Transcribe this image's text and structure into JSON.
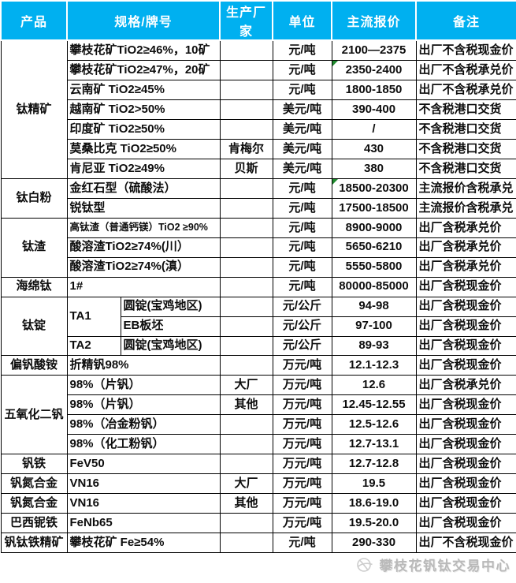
{
  "header": {
    "columns": [
      "产品",
      "规格/牌号",
      "生产厂家",
      "单位",
      "主流报价",
      "备注"
    ]
  },
  "colors": {
    "header_bg": "#00b0f0",
    "header_text": "#ffffff",
    "border": "#000000",
    "flag_green": "#1f8a2e",
    "watermark_gray": "#b9b9b9"
  },
  "rows": [
    {
      "product": "钛精矿",
      "product_span": 7,
      "spec": "攀枝花矿TiO2≥46%，10矿",
      "maker": "",
      "unit": "元/吨",
      "price": "2100—2375",
      "note": "出厂不含税现金价",
      "flag": false
    },
    {
      "spec": "攀枝花矿TiO2≥47%，20矿",
      "maker": "",
      "unit": "元/吨",
      "price": "2350-2400",
      "note": "出厂不含税承兑价",
      "flag": true
    },
    {
      "spec": "云南矿 TiO2≥45%",
      "maker": "",
      "unit": "元/吨",
      "price": "1800-1850",
      "note": "出厂不含税承兑价",
      "flag": false
    },
    {
      "spec": "越南矿 TiO2>50%",
      "maker": "",
      "unit": "美元/吨",
      "price": "390-400",
      "note": "不含税港口交货",
      "flag": false
    },
    {
      "spec": "印度矿 TiO2≥50%",
      "maker": "",
      "unit": "美元/吨",
      "price": "/",
      "note": "不含税港口交货",
      "flag": false
    },
    {
      "spec": "莫桑比克 TiO2≥50%",
      "maker": "肯梅尔",
      "unit": "美元/吨",
      "price": "430",
      "note": "不含税港口交货",
      "flag": false
    },
    {
      "spec": "肯尼亚 TiO2≥49%",
      "maker": "贝斯",
      "unit": "美元/吨",
      "price": "380",
      "note": "不含税港口交货",
      "flag": false
    },
    {
      "product": "钛白粉",
      "product_span": 2,
      "spec": "金红石型（硫酸法）",
      "maker": "",
      "unit": "元/吨",
      "price": "18500-20300",
      "note": "主流报价含税承兑",
      "flag": true
    },
    {
      "spec": "锐钛型",
      "maker": "",
      "unit": "元/吨",
      "price": "17500-18500",
      "note": "主流报价含税承兑",
      "flag": false
    },
    {
      "product": "钛渣",
      "product_span": 3,
      "spec": "高钛渣（普通钙镁）TiO2 ≥90%",
      "spec_small": true,
      "maker": "",
      "unit": "元/吨",
      "price": "8900-9000",
      "note": "出厂含税承兑价",
      "flag": false
    },
    {
      "spec": "酸溶渣TiO2≥74%(川）",
      "maker": "",
      "unit": "元/吨",
      "price": "5650-6210",
      "note": "出厂含税承兑价",
      "flag": false
    },
    {
      "spec": "酸溶渣TiO2≥74%(滇）",
      "maker": "",
      "unit": "元/吨",
      "price": "5550-5800",
      "note": "出厂含税承兑价",
      "flag": false
    },
    {
      "product": "海绵钛",
      "product_span": 1,
      "spec": "1#",
      "maker": "",
      "unit": "元/吨",
      "price": "80000-85000",
      "note": "出厂含税现金价",
      "flag": false
    },
    {
      "product": "钛锭",
      "product_span": 3,
      "grade": "TA1",
      "grade_span": 2,
      "shape": "圆锭(宝鸡地区)",
      "maker": "",
      "unit": "元/公斤",
      "price": "94-98",
      "note": "出厂含税现金价",
      "flag": false
    },
    {
      "shape": "EB板坯",
      "maker": "",
      "unit": "元/公斤",
      "price": "97-100",
      "note": "出厂含税现金价",
      "flag": false
    },
    {
      "grade": "TA2",
      "grade_span": 1,
      "shape": "圆锭(宝鸡地区)",
      "maker": "",
      "unit": "元/公斤",
      "price": "89-93",
      "note": "出厂含税现金价",
      "flag": false
    },
    {
      "product": "偏钒酸铵",
      "product_span": 1,
      "spec": "折精钒98%",
      "maker": "",
      "unit": "万元/吨",
      "price": "12.1-12.3",
      "note": "出厂含税现金价",
      "flag": false
    },
    {
      "product": "五氧化二钒",
      "product_span": 4,
      "spec": "98%（片钒）",
      "maker": "大厂",
      "unit": "万元/吨",
      "price": "12.6",
      "note": "出厂含税承兑价",
      "flag": false
    },
    {
      "spec": "98%（片钒）",
      "maker": "其他",
      "unit": "万元/吨",
      "price": "12.45-12.55",
      "note": "出厂含税现金价",
      "flag": false
    },
    {
      "spec": "98%（冶金粉钒）",
      "maker": "",
      "unit": "万元/吨",
      "price": "12.5-12.6",
      "note": "出厂含税现金价",
      "flag": false
    },
    {
      "spec": "98%（化工粉钒）",
      "maker": "",
      "unit": "万元/吨",
      "price": "12.7-13.1",
      "note": "出厂含税现金价",
      "flag": false
    },
    {
      "product": "钒铁",
      "product_span": 1,
      "spec": "FeV50",
      "maker": "",
      "unit": "万元/吨",
      "price": "12.7-12.8",
      "note": "出厂含税现金价",
      "flag": false
    },
    {
      "product": "钒氮合金",
      "product_span": 1,
      "spec": "VN16",
      "maker": "大厂",
      "unit": "万元/吨",
      "price": "19.5",
      "note": "出厂含税现金价",
      "flag": false
    },
    {
      "product": "钒氮合金",
      "product_span": 1,
      "spec": "VN16",
      "maker": "其他",
      "unit": "万元/吨",
      "price": "18.6-19.0",
      "note": "出厂含税现金价",
      "flag": false
    },
    {
      "product": "巴西铌铁",
      "product_span": 1,
      "spec": "FeNb65",
      "maker": "",
      "unit": "万元/吨",
      "price": "19.5-20.0",
      "note": "出厂含税现金价",
      "flag": false
    },
    {
      "product": "钒钛铁精矿",
      "product_span": 1,
      "spec": "攀枝花矿 Fe≥54%",
      "maker": "",
      "unit": "元/吨",
      "price": "290-330",
      "note": "出厂不含税现金价",
      "flag": false
    }
  ],
  "footer": {
    "watermark_text": "攀枝花钒钛交易中心",
    "logo": "globe-icon"
  }
}
